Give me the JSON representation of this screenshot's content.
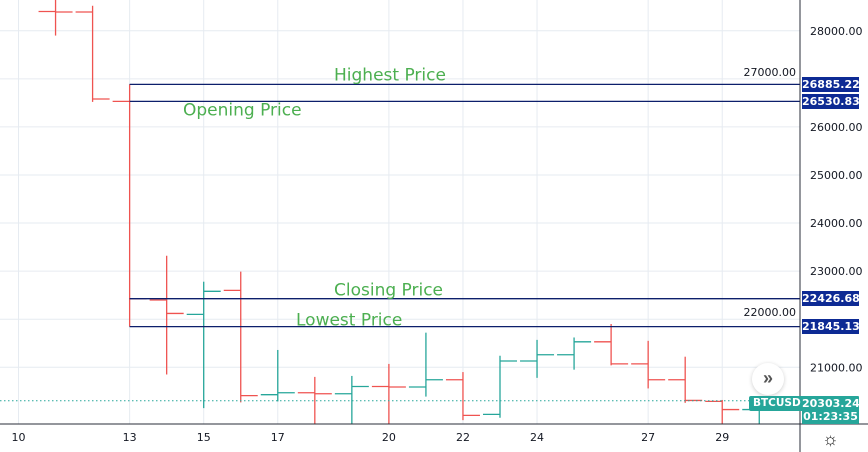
{
  "chart_data": {
    "type": "ohlc",
    "symbol": "BTCUSD",
    "x_ticks": [
      10,
      13,
      15,
      17,
      20,
      22,
      24,
      27,
      29
    ],
    "y_ticks": [
      28000,
      27000,
      26000,
      25000,
      24000,
      23000,
      22000,
      21000
    ],
    "ylim": [
      19820,
      28640
    ],
    "xlim": [
      9.5,
      31.1
    ],
    "grid": true,
    "colors": {
      "up": "#26a69a",
      "down": "#ef5350",
      "level_line": "#0d1f6b",
      "annotation": "#4caf50"
    },
    "bars": [
      {
        "day": 11,
        "open": 28400,
        "high": 28700,
        "low": 27900,
        "close": 28390
      },
      {
        "day": 12,
        "open": 28390,
        "high": 28520,
        "low": 26520,
        "close": 26580
      },
      {
        "day": 13,
        "open": 26530.83,
        "high": 26885.22,
        "low": 21845.13,
        "close": 22426.68
      },
      {
        "day": 14,
        "open": 22400,
        "high": 23320,
        "low": 20850,
        "close": 22120
      },
      {
        "day": 15,
        "open": 22100,
        "high": 22780,
        "low": 20150,
        "close": 22580
      },
      {
        "day": 16,
        "open": 22600,
        "high": 22990,
        "low": 20270,
        "close": 20410
      },
      {
        "day": 17,
        "open": 20430,
        "high": 21360,
        "low": 20290,
        "close": 20470
      },
      {
        "day": 18,
        "open": 20470,
        "high": 20800,
        "low": 19500,
        "close": 20450
      },
      {
        "day": 19,
        "open": 20450,
        "high": 20820,
        "low": 19600,
        "close": 20600
      },
      {
        "day": 20,
        "open": 20600,
        "high": 21070,
        "low": 19700,
        "close": 20590
      },
      {
        "day": 21,
        "open": 20590,
        "high": 21720,
        "low": 20390,
        "close": 20740
      },
      {
        "day": 22,
        "open": 20740,
        "high": 20900,
        "low": 19900,
        "close": 20000
      },
      {
        "day": 23,
        "open": 20020,
        "high": 21240,
        "low": 19950,
        "close": 21130
      },
      {
        "day": 24,
        "open": 21130,
        "high": 21570,
        "low": 20780,
        "close": 21260
      },
      {
        "day": 25,
        "open": 21260,
        "high": 21620,
        "low": 20950,
        "close": 21530
      },
      {
        "day": 26,
        "open": 21530,
        "high": 21900,
        "low": 21040,
        "close": 21070
      },
      {
        "day": 27,
        "open": 21070,
        "high": 21550,
        "low": 20560,
        "close": 20740
      },
      {
        "day": 28,
        "open": 20740,
        "high": 21220,
        "low": 20260,
        "close": 20310
      },
      {
        "day": 29,
        "open": 20290,
        "high": 20320,
        "low": 19700,
        "close": 20120
      },
      {
        "day": 30,
        "open": 20120,
        "high": 20350,
        "low": 19800,
        "close": 20303.24
      }
    ],
    "levels": [
      {
        "name": "Highest Price",
        "value": 26885.22,
        "label": "26885.22"
      },
      {
        "name": "Opening Price",
        "value": 26530.83,
        "label": "26530.83"
      },
      {
        "name": "Closing Price",
        "value": 22426.68,
        "label": "22426.68"
      },
      {
        "name": "Lowest Price",
        "value": 21845.13,
        "label": "21845.13"
      }
    ],
    "last_price": {
      "value": 20303.24,
      "label": "20303.24",
      "countdown": "01:23:35"
    }
  },
  "y_tick_labels": [
    "28000.00",
    "27000.00",
    "26000.00",
    "25000.00",
    "24000.00",
    "23000.00",
    "22000.00",
    "21000.00"
  ]
}
